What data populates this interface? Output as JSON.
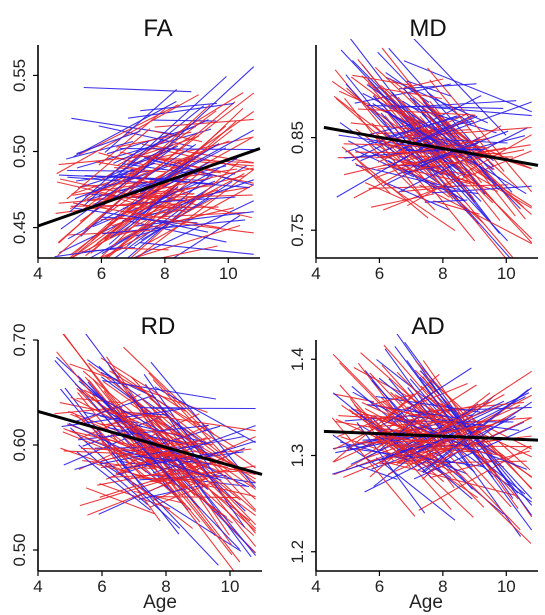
{
  "chart_data": [
    {
      "type": "line",
      "title": "FA",
      "xlabel": "",
      "ylabel": "",
      "xlim": [
        4,
        11
      ],
      "ylim": [
        0.43,
        0.57
      ],
      "x_ticks": [
        "4",
        "6",
        "8",
        "10"
      ],
      "y_ticks": [
        "0.45",
        "0.50",
        "0.55"
      ],
      "colors": {
        "individual_a": "#e8262a",
        "individual_b": "#2a1ee8",
        "fit": "#000000"
      },
      "fit_line": {
        "x": [
          4.0,
          11.0
        ],
        "y": [
          0.451,
          0.502
        ]
      },
      "individual_lines": {
        "count": 170,
        "x_range": [
          4.5,
          10.8
        ],
        "y_spread": 0.035,
        "slope_range": [
          -0.006,
          0.02
        ]
      }
    },
    {
      "type": "line",
      "title": "MD",
      "xlabel": "",
      "ylabel": "",
      "xlim": [
        4,
        11
      ],
      "ylim": [
        0.72,
        0.95
      ],
      "x_ticks": [
        "4",
        "6",
        "8",
        "10"
      ],
      "y_ticks": [
        "0.75",
        "0.85"
      ],
      "colors": {
        "individual_a": "#e8262a",
        "individual_b": "#2a1ee8",
        "fit": "#000000"
      },
      "fit_line": {
        "x": [
          4.25,
          11.0
        ],
        "y": [
          0.861,
          0.82
        ]
      },
      "individual_lines": {
        "count": 170,
        "x_range": [
          4.5,
          10.8
        ],
        "y_spread": 0.045,
        "slope_range": [
          -0.045,
          0.02
        ]
      }
    },
    {
      "type": "line",
      "title": "RD",
      "xlabel": "Age",
      "ylabel": "",
      "xlim": [
        4,
        11
      ],
      "ylim": [
        0.48,
        0.7
      ],
      "x_ticks": [
        "4",
        "6",
        "8",
        "10"
      ],
      "y_ticks": [
        "0.50",
        "0.60",
        "0.70"
      ],
      "colors": {
        "individual_a": "#e8262a",
        "individual_b": "#2a1ee8",
        "fit": "#000000"
      },
      "fit_line": {
        "x": [
          4.0,
          11.0
        ],
        "y": [
          0.632,
          0.572
        ]
      },
      "individual_lines": {
        "count": 170,
        "x_range": [
          4.5,
          10.8
        ],
        "y_spread": 0.04,
        "slope_range": [
          -0.045,
          0.015
        ]
      }
    },
    {
      "type": "line",
      "title": "AD",
      "xlabel": "Age",
      "ylabel": "",
      "xlim": [
        4,
        11
      ],
      "ylim": [
        1.18,
        1.42
      ],
      "x_ticks": [
        "4",
        "6",
        "8",
        "10"
      ],
      "y_ticks": [
        "1.2",
        "1.3",
        "1.4"
      ],
      "colors": {
        "individual_a": "#e8262a",
        "individual_b": "#2a1ee8",
        "fit": "#000000"
      },
      "fit_line": {
        "x": [
          4.25,
          11.0
        ],
        "y": [
          1.325,
          1.316
        ]
      },
      "individual_lines": {
        "count": 170,
        "x_range": [
          4.5,
          10.8
        ],
        "y_spread": 0.03,
        "slope_range": [
          -0.05,
          0.03
        ]
      }
    }
  ]
}
